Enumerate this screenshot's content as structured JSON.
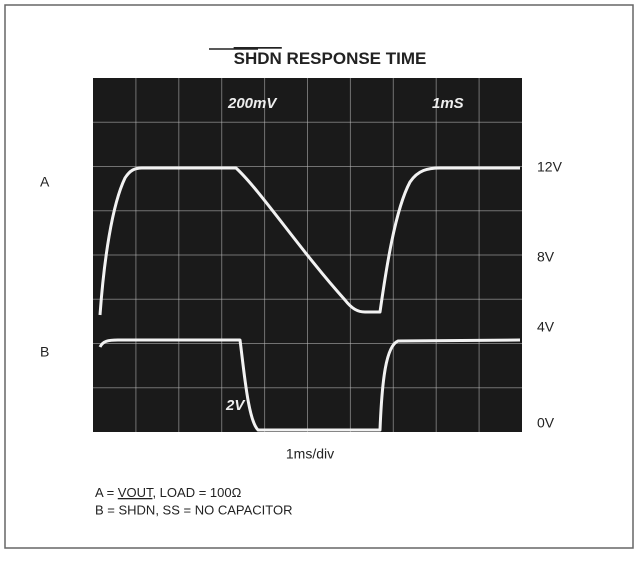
{
  "header": {
    "title_signal": "SHDN",
    "title_rest": "RESPONSE TIME"
  },
  "screen": {
    "volts_per_div": "200mV",
    "time_per_div": "1mS",
    "channel_b_scale": "2V"
  },
  "trace_labels": {
    "a": "A",
    "b": "B"
  },
  "level_labels": [
    "12V",
    "8V",
    "4V",
    "0V"
  ],
  "x_axis_label": "1ms/div",
  "legend": {
    "a": {
      "prefix": "A = ",
      "signal": "VOUT",
      "rest": ", LOAD = 100Ω"
    },
    "b": "B = SHDN, SS = NO CAPACITOR"
  }
}
